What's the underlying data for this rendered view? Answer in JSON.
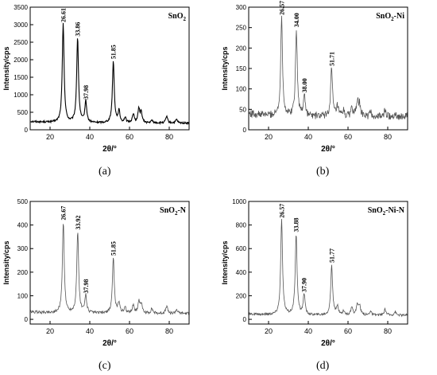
{
  "captions": [
    "(a)",
    "(b)",
    "(c)",
    "(d)"
  ],
  "chart_data": [
    {
      "type": "line",
      "panel": "(a)",
      "label": "SnO",
      "label_sub": "2",
      "label_tail": "",
      "xlabel": "2θ/°",
      "ylabel": "Intensity/cps",
      "xlim": [
        10,
        90
      ],
      "ylim": [
        0,
        3500
      ],
      "xticks": [
        20,
        40,
        60,
        80
      ],
      "yticks": [
        0,
        500,
        1000,
        1500,
        2000,
        2500,
        3000,
        3500
      ],
      "color": "#000000",
      "baseline": 190,
      "noise": 25,
      "peaks": [
        {
          "x": 26.61,
          "y": 3000,
          "label": "26.61"
        },
        {
          "x": 33.86,
          "y": 2600,
          "label": "33.86"
        },
        {
          "x": 37.98,
          "y": 800,
          "label": "37.98"
        },
        {
          "x": 51.85,
          "y": 1950,
          "label": "51.85"
        },
        {
          "x": 54.7,
          "y": 520,
          "label": ""
        },
        {
          "x": 57.8,
          "y": 330,
          "label": ""
        },
        {
          "x": 61.9,
          "y": 440,
          "label": ""
        },
        {
          "x": 64.7,
          "y": 580,
          "label": ""
        },
        {
          "x": 65.9,
          "y": 480,
          "label": ""
        },
        {
          "x": 71.3,
          "y": 260,
          "label": ""
        },
        {
          "x": 78.7,
          "y": 380,
          "label": ""
        },
        {
          "x": 83.7,
          "y": 290,
          "label": ""
        }
      ]
    },
    {
      "type": "line",
      "panel": "(b)",
      "label": "SnO",
      "label_sub": "2",
      "label_tail": "-Ni",
      "xlabel": "2θ/°",
      "ylabel": "Intensity/cps",
      "xlim": [
        10,
        90
      ],
      "ylim": [
        0,
        300
      ],
      "xticks": [
        20,
        40,
        60,
        80
      ],
      "yticks": [
        0,
        50,
        100,
        150,
        200,
        250,
        300
      ],
      "color": "#555555",
      "baseline": 32,
      "noise": 9,
      "peaks": [
        {
          "x": 26.57,
          "y": 275,
          "label": "26.57"
        },
        {
          "x": 34.0,
          "y": 245,
          "label": "34.00"
        },
        {
          "x": 38.0,
          "y": 85,
          "label": "38.00"
        },
        {
          "x": 51.71,
          "y": 150,
          "label": "51.71"
        },
        {
          "x": 54.7,
          "y": 55,
          "label": ""
        },
        {
          "x": 57.8,
          "y": 45,
          "label": ""
        },
        {
          "x": 61.9,
          "y": 55,
          "label": ""
        },
        {
          "x": 64.7,
          "y": 70,
          "label": ""
        },
        {
          "x": 65.9,
          "y": 60,
          "label": ""
        },
        {
          "x": 71.3,
          "y": 42,
          "label": ""
        },
        {
          "x": 78.7,
          "y": 48,
          "label": ""
        },
        {
          "x": 83.7,
          "y": 40,
          "label": ""
        }
      ]
    },
    {
      "type": "line",
      "panel": "(c)",
      "label": "SnO",
      "label_sub": "2",
      "label_tail": "-N",
      "xlabel": "2θ/°",
      "ylabel": "Intensity/cps",
      "xlim": [
        10,
        90
      ],
      "ylim": [
        -20,
        500
      ],
      "xticks": [
        20,
        40,
        60,
        80
      ],
      "yticks": [
        0,
        100,
        200,
        300,
        400,
        500
      ],
      "color": "#555555",
      "baseline": 25,
      "noise": 6,
      "peaks": [
        {
          "x": 26.67,
          "y": 410,
          "label": "26.67"
        },
        {
          "x": 33.92,
          "y": 370,
          "label": "33.92"
        },
        {
          "x": 37.98,
          "y": 100,
          "label": "37.98"
        },
        {
          "x": 51.85,
          "y": 260,
          "label": "51.85"
        },
        {
          "x": 54.7,
          "y": 70,
          "label": ""
        },
        {
          "x": 57.8,
          "y": 50,
          "label": ""
        },
        {
          "x": 61.9,
          "y": 60,
          "label": ""
        },
        {
          "x": 64.7,
          "y": 75,
          "label": ""
        },
        {
          "x": 65.9,
          "y": 65,
          "label": ""
        },
        {
          "x": 71.3,
          "y": 45,
          "label": ""
        },
        {
          "x": 78.7,
          "y": 55,
          "label": ""
        },
        {
          "x": 83.7,
          "y": 42,
          "label": ""
        }
      ]
    },
    {
      "type": "line",
      "panel": "(d)",
      "label": "SnO",
      "label_sub": "2",
      "label_tail": "-Ni-N",
      "xlabel": "2θ/°",
      "ylabel": "Intensity/cps",
      "xlim": [
        10,
        90
      ],
      "ylim": [
        -40,
        1000
      ],
      "xticks": [
        20,
        40,
        60,
        80
      ],
      "yticks": [
        0,
        200,
        400,
        600,
        800,
        1000
      ],
      "color": "#555555",
      "baseline": 35,
      "noise": 10,
      "peaks": [
        {
          "x": 26.57,
          "y": 840,
          "label": "26.57"
        },
        {
          "x": 33.88,
          "y": 720,
          "label": "33.88"
        },
        {
          "x": 37.9,
          "y": 210,
          "label": "37.90"
        },
        {
          "x": 51.77,
          "y": 460,
          "label": "51.77"
        },
        {
          "x": 54.7,
          "y": 110,
          "label": ""
        },
        {
          "x": 57.8,
          "y": 70,
          "label": ""
        },
        {
          "x": 61.9,
          "y": 95,
          "label": ""
        },
        {
          "x": 64.7,
          "y": 130,
          "label": ""
        },
        {
          "x": 65.9,
          "y": 110,
          "label": ""
        },
        {
          "x": 71.3,
          "y": 70,
          "label": ""
        },
        {
          "x": 78.7,
          "y": 85,
          "label": ""
        },
        {
          "x": 83.7,
          "y": 65,
          "label": ""
        }
      ]
    }
  ]
}
